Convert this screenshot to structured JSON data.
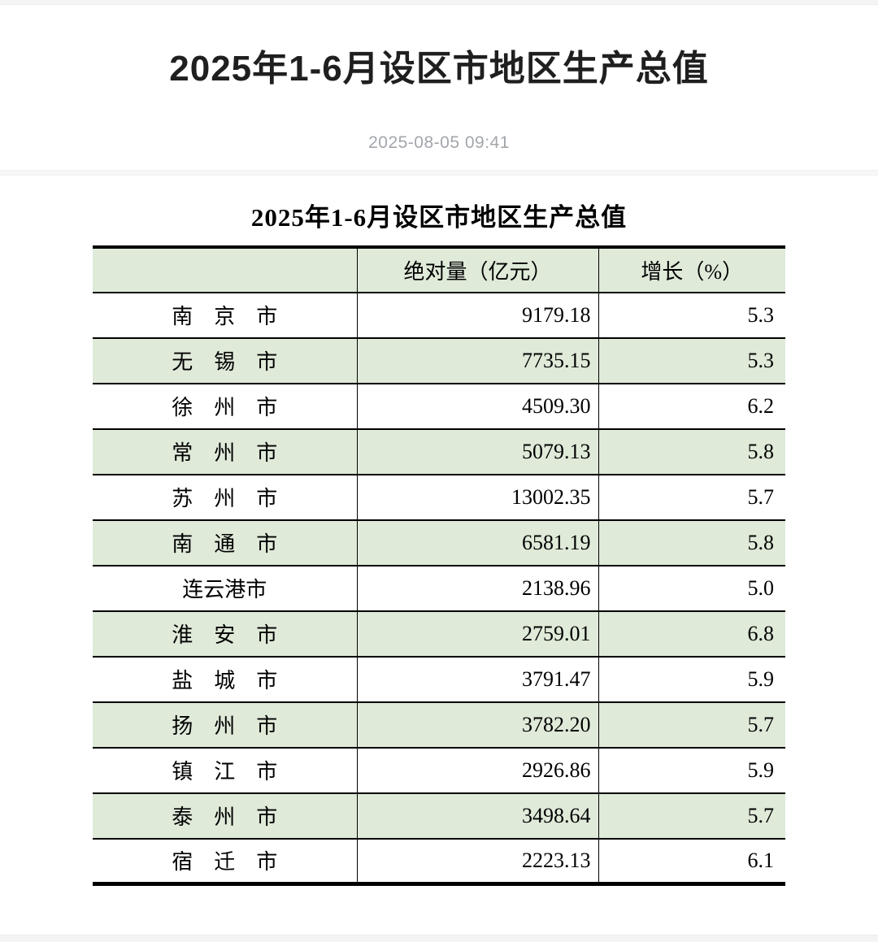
{
  "page": {
    "title": "2025年1-6月设区市地区生产总值",
    "date": "2025-08-05 09:41"
  },
  "table": {
    "title": "2025年1-6月设区市地区生产总值",
    "columns": {
      "city": "",
      "absolute": "绝对量（亿元）",
      "growth": "增长（%）"
    },
    "rows": [
      {
        "city": "南　京　市",
        "value": "9179.18",
        "growth": "5.3"
      },
      {
        "city": "无　锡　市",
        "value": "7735.15",
        "growth": "5.3"
      },
      {
        "city": "徐　州　市",
        "value": "4509.30",
        "growth": "6.2"
      },
      {
        "city": "常　州　市",
        "value": "5079.13",
        "growth": "5.8"
      },
      {
        "city": "苏　州　市",
        "value": "13002.35",
        "growth": "5.7"
      },
      {
        "city": "南　通　市",
        "value": "6581.19",
        "growth": "5.8"
      },
      {
        "city": "连云港市",
        "value": "2138.96",
        "growth": "5.0"
      },
      {
        "city": "淮　安　市",
        "value": "2759.01",
        "growth": "6.8"
      },
      {
        "city": "盐　城　市",
        "value": "3791.47",
        "growth": "5.9"
      },
      {
        "city": "扬　州　市",
        "value": "3782.20",
        "growth": "5.7"
      },
      {
        "city": "镇　江　市",
        "value": "2926.86",
        "growth": "5.9"
      },
      {
        "city": "泰　州　市",
        "value": "3498.64",
        "growth": "5.7"
      },
      {
        "city": "宿　迁　市",
        "value": "2223.13",
        "growth": "6.1"
      }
    ]
  },
  "colors": {
    "row_stripe_green": "#dfead9",
    "table_border": "#000000",
    "date_gray": "#a2a6ab",
    "strip_gray": "#f4f4f4"
  }
}
